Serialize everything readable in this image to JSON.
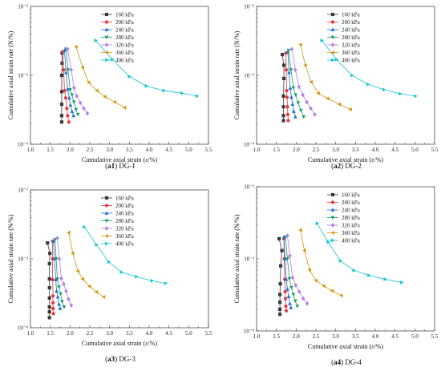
{
  "legend": {
    "pressures": [
      "160 kPa",
      "200 kPa",
      "240 kPa",
      "280 kPa",
      "320 kPa",
      "360 kPa",
      "400 kPa"
    ],
    "colors": [
      "#3b3b3b",
      "#e8363c",
      "#1f6fd1",
      "#1aa06a",
      "#b57ee8",
      "#d4960c",
      "#14c4d4"
    ],
    "markers": [
      "square",
      "circle",
      "triangle-up",
      "triangle-down",
      "diamond",
      "triangle-left",
      "triangle-right"
    ]
  },
  "chart_data": [
    {
      "type": "scatter",
      "panel_id": "a1",
      "caption_tag": "a1",
      "caption_text": "DG-1",
      "xlabel": "Cumulative axial strain (ε/%)",
      "ylabel": "Cumulative axial strain rate (N/%)",
      "xlim": [
        1.0,
        5.5
      ],
      "ylim_log": [
        -4,
        -2
      ],
      "x_ticks": [
        "1.0",
        "1.5",
        "2.0",
        "2.5",
        "3.0",
        "3.5",
        "4.0",
        "4.5",
        "5.0",
        "5.5"
      ],
      "y_ticks": [
        "10⁻⁴",
        "10⁻³",
        "10⁻²"
      ],
      "y_scale": "log",
      "series": [
        {
          "name": "160 kPa",
          "x": [
            1.79,
            1.79,
            1.79,
            1.79,
            1.79,
            1.8,
            1.8
          ],
          "y": [
            0.00021,
            0.00026,
            0.00038,
            0.00058,
            0.001,
            0.0015,
            0.0021
          ]
        },
        {
          "name": "200 kPa",
          "x": [
            1.97,
            1.94,
            1.92,
            1.89,
            1.86,
            1.84,
            1.81
          ],
          "y": [
            0.00021,
            0.00026,
            0.00033,
            0.00047,
            0.0006,
            0.0012,
            0.0022
          ]
        },
        {
          "name": "240 kPa",
          "x": [
            2.09,
            2.05,
            2.01,
            1.98,
            1.94,
            1.9,
            1.86
          ],
          "y": [
            0.00026,
            0.0003,
            0.00037,
            0.00047,
            0.00063,
            0.0011,
            0.0023
          ]
        },
        {
          "name": "280 kPa",
          "x": [
            2.2,
            2.15,
            2.1,
            2.05,
            2.0,
            1.95,
            1.9
          ],
          "y": [
            0.00027,
            0.00032,
            0.00041,
            0.00052,
            0.00062,
            0.0012,
            0.0024
          ]
        },
        {
          "name": "320 kPa",
          "x": [
            2.44,
            2.35,
            2.26,
            2.17,
            2.1,
            2.03,
            1.94
          ],
          "y": [
            0.00028,
            0.00033,
            0.0004,
            0.0005,
            0.00066,
            0.0012,
            0.0024
          ]
        },
        {
          "name": "360 kPa",
          "x": [
            3.38,
            3.13,
            2.88,
            2.68,
            2.47,
            2.32,
            2.15
          ],
          "y": [
            0.00034,
            0.00041,
            0.00049,
            0.0006,
            0.00079,
            0.0013,
            0.0026
          ]
        },
        {
          "name": "400 kPa",
          "x": [
            5.21,
            4.83,
            4.37,
            3.93,
            3.5,
            3.07,
            2.65
          ],
          "y": [
            0.0005,
            0.00055,
            0.0006,
            0.0007,
            0.00096,
            0.0017,
            0.0032
          ]
        }
      ]
    },
    {
      "type": "scatter",
      "panel_id": "a2",
      "caption_tag": "a2",
      "caption_text": "DG-2",
      "xlabel": "Cumulative axial strain (ε/%)",
      "ylabel": "Cumulative axial strain rate (N/%)",
      "xlim": [
        1.0,
        5.5
      ],
      "ylim_log": [
        -4,
        -2
      ],
      "x_ticks": [
        "1.0",
        "1.5",
        "2.0",
        "2.5",
        "3.0",
        "3.5",
        "4.0",
        "4.5",
        "5.0",
        "5.5"
      ],
      "y_ticks": [
        "10⁻⁴",
        "10⁻³",
        "10⁻²"
      ],
      "y_scale": "log",
      "series": [
        {
          "name": "160 kPa",
          "x": [
            1.68,
            1.68,
            1.68,
            1.68,
            1.69,
            1.69,
            1.65
          ],
          "y": [
            0.00022,
            0.00026,
            0.00035,
            0.0005,
            0.0009,
            0.0014,
            0.002
          ]
        },
        {
          "name": "200 kPa",
          "x": [
            1.8,
            1.79,
            1.78,
            1.77,
            1.76,
            1.75,
            1.74
          ],
          "y": [
            0.00022,
            0.00027,
            0.00035,
            0.00048,
            0.0006,
            0.0012,
            0.0021
          ]
        },
        {
          "name": "240 kPa",
          "x": [
            1.98,
            1.94,
            1.91,
            1.88,
            1.85,
            1.82,
            1.79
          ],
          "y": [
            0.00025,
            0.0003,
            0.00038,
            0.00048,
            0.00065,
            0.0011,
            0.0022
          ]
        },
        {
          "name": "280 kPa",
          "x": [
            2.19,
            2.12,
            2.05,
            1.99,
            1.93,
            1.87,
            1.81
          ],
          "y": [
            0.00025,
            0.00031,
            0.0004,
            0.00052,
            0.00066,
            0.0012,
            0.0023
          ]
        },
        {
          "name": "320 kPa",
          "x": [
            2.47,
            2.37,
            2.27,
            2.17,
            2.07,
            1.98,
            1.89
          ],
          "y": [
            0.00027,
            0.00033,
            0.00041,
            0.00052,
            0.00068,
            0.0012,
            0.0024
          ]
        },
        {
          "name": "360 kPa",
          "x": [
            3.37,
            3.09,
            2.8,
            2.56,
            2.38,
            2.23,
            2.11
          ],
          "y": [
            0.00032,
            0.00038,
            0.00046,
            0.00055,
            0.0008,
            0.0014,
            0.0028
          ]
        },
        {
          "name": "400 kPa",
          "x": [
            5.02,
            4.63,
            4.22,
            3.82,
            3.41,
            3.02,
            2.65
          ],
          "y": [
            0.0005,
            0.00054,
            0.00062,
            0.00074,
            0.001,
            0.0017,
            0.0032
          ]
        }
      ]
    },
    {
      "type": "scatter",
      "panel_id": "a3",
      "caption_tag": "a3",
      "caption_text": "DG-3",
      "xlabel": "Cumulative axial strain (ε/%)",
      "ylabel": "Cumulative axial strain rate (N/%)",
      "xlim": [
        1.0,
        5.5
      ],
      "ylim_log": [
        -4,
        -2
      ],
      "x_ticks": [
        "1.0",
        "1.5",
        "2.0",
        "2.5",
        "3.0",
        "3.5",
        "4.0",
        "4.5",
        "5.0",
        "5.5"
      ],
      "y_ticks": [
        "10⁻⁴",
        "10⁻³",
        "10⁻²"
      ],
      "y_scale": "log",
      "series": [
        {
          "name": "160 kPa",
          "x": [
            1.48,
            1.48,
            1.48,
            1.48,
            1.48,
            1.48,
            1.48,
            1.49,
            1.43
          ],
          "y": [
            0.00014,
            0.00017,
            0.0002,
            0.00027,
            0.00038,
            0.00051,
            0.00085,
            0.0012,
            0.0017
          ]
        },
        {
          "name": "200 kPa",
          "x": [
            1.58,
            1.57,
            1.57,
            1.57,
            1.56,
            1.56,
            1.56
          ],
          "y": [
            0.00016,
            0.00019,
            0.00023,
            0.00029,
            0.0005,
            0.001,
            0.0018
          ]
        },
        {
          "name": "240 kPa",
          "x": [
            1.75,
            1.72,
            1.69,
            1.66,
            1.64,
            1.61,
            1.58
          ],
          "y": [
            0.00019,
            0.00022,
            0.00028,
            0.00034,
            0.0005,
            0.001,
            0.0018
          ]
        },
        {
          "name": "280 kPa",
          "x": [
            1.85,
            1.8,
            1.76,
            1.72,
            1.68,
            1.65,
            1.62
          ],
          "y": [
            0.0002,
            0.00024,
            0.00031,
            0.00039,
            0.00051,
            0.001,
            0.0019
          ]
        },
        {
          "name": "320 kPa",
          "x": [
            2.03,
            1.96,
            1.9,
            1.84,
            1.78,
            1.73,
            1.68
          ],
          "y": [
            0.00021,
            0.00026,
            0.00034,
            0.00043,
            0.00052,
            0.001,
            0.002
          ]
        },
        {
          "name": "360 kPa",
          "x": [
            2.85,
            2.67,
            2.49,
            2.32,
            2.2,
            2.07,
            1.97
          ],
          "y": [
            0.00028,
            0.00033,
            0.0004,
            0.00051,
            0.00066,
            0.0012,
            0.0024
          ]
        },
        {
          "name": "400 kPa",
          "x": [
            4.42,
            4.07,
            3.68,
            3.3,
            2.98,
            2.67,
            2.36
          ],
          "y": [
            0.00044,
            0.00048,
            0.00055,
            0.00064,
            0.0009,
            0.0016,
            0.0029
          ]
        }
      ]
    },
    {
      "type": "scatter",
      "panel_id": "a4",
      "caption_tag": "a4",
      "caption_text": "DG-4",
      "xlabel": "Cumulative axial strain (ε/%)",
      "ylabel": "Cumulative axial strain rate (N/%)",
      "xlim": [
        1.0,
        5.5
      ],
      "ylim_log": [
        -4,
        -2
      ],
      "x_ticks": [
        "1.0",
        "1.5",
        "2.0",
        "2.5",
        "3.0",
        "3.5",
        "4.0",
        "4.5",
        "5.0",
        "5.5"
      ],
      "y_ticks": [
        "10⁻⁴",
        "10⁻³",
        "10⁻²"
      ],
      "y_scale": "log",
      "series": [
        {
          "name": "160 kPa",
          "x": [
            1.59,
            1.59,
            1.59,
            1.59,
            1.6,
            1.61,
            1.64,
            1.57
          ],
          "y": [
            0.00017,
            0.0002,
            0.00025,
            0.00032,
            0.00045,
            0.0008,
            0.0013,
            0.0019
          ]
        },
        {
          "name": "200 kPa",
          "x": [
            1.75,
            1.74,
            1.73,
            1.72,
            1.71,
            1.7,
            1.69
          ],
          "y": [
            0.00019,
            0.00022,
            0.00028,
            0.00035,
            0.00052,
            0.001,
            0.0019
          ]
        },
        {
          "name": "240 kPa",
          "x": [
            1.87,
            1.84,
            1.81,
            1.78,
            1.75,
            1.72,
            1.69
          ],
          "y": [
            0.00021,
            0.00024,
            0.0003,
            0.00038,
            0.00052,
            0.001,
            0.002
          ]
        },
        {
          "name": "280 kPa",
          "x": [
            2.03,
            1.98,
            1.93,
            1.88,
            1.83,
            1.78,
            1.73
          ],
          "y": [
            0.00022,
            0.00026,
            0.00032,
            0.0004,
            0.00053,
            0.001,
            0.002
          ]
        },
        {
          "name": "320 kPa",
          "x": [
            2.28,
            2.18,
            2.08,
            1.99,
            1.91,
            1.84,
            1.78
          ],
          "y": [
            0.00024,
            0.00028,
            0.00035,
            0.00043,
            0.00055,
            0.0011,
            0.0021
          ]
        },
        {
          "name": "360 kPa",
          "x": [
            3.14,
            2.91,
            2.7,
            2.5,
            2.34,
            2.21,
            2.11
          ],
          "y": [
            0.00031,
            0.00036,
            0.00042,
            0.0005,
            0.0007,
            0.0013,
            0.0025
          ]
        },
        {
          "name": "400 kPa",
          "x": [
            4.67,
            4.25,
            3.84,
            3.46,
            3.12,
            2.81,
            2.53
          ],
          "y": [
            0.00047,
            0.00052,
            0.00059,
            0.00069,
            0.00094,
            0.0017,
            0.0031
          ]
        }
      ]
    }
  ]
}
